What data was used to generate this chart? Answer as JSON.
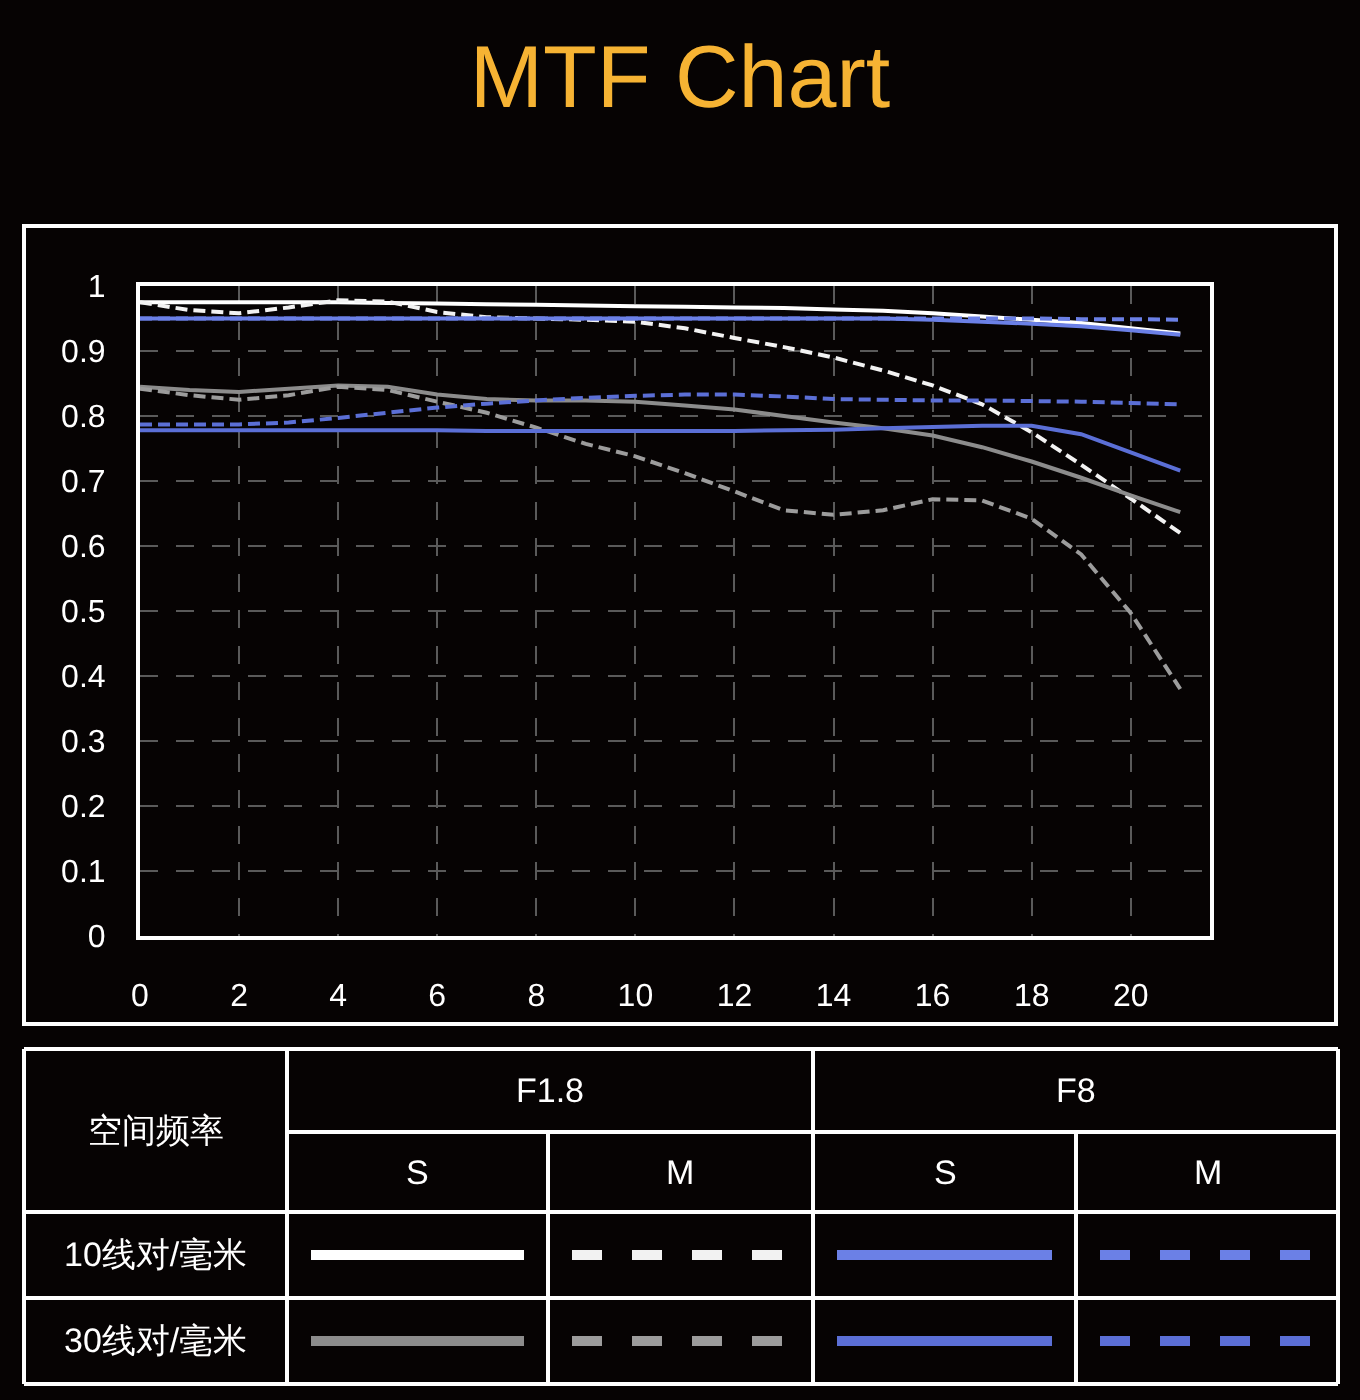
{
  "chart_data": {
    "type": "line",
    "title": "MTF Chart",
    "x": [
      0,
      1,
      2,
      3,
      4,
      5,
      6,
      7,
      8,
      9,
      10,
      11,
      12,
      13,
      14,
      15,
      16,
      17,
      18,
      19,
      20,
      21
    ],
    "series": [
      {
        "color": "#ffffff",
        "line_style": "solid",
        "values": [
          0.975,
          0.975,
          0.975,
          0.975,
          0.975,
          0.974,
          0.973,
          0.972,
          0.971,
          0.97,
          0.969,
          0.968,
          0.967,
          0.966,
          0.964,
          0.962,
          0.958,
          0.953,
          0.948,
          0.943,
          0.935,
          0.927
        ]
      },
      {
        "color": "#f2f2f2",
        "line_style": "dashed",
        "values": [
          0.975,
          0.963,
          0.958,
          0.967,
          0.978,
          0.976,
          0.96,
          0.952,
          0.95,
          0.948,
          0.945,
          0.935,
          0.92,
          0.906,
          0.89,
          0.87,
          0.847,
          0.818,
          0.775,
          0.725,
          0.673,
          0.62
        ]
      },
      {
        "color": "#6b80e6",
        "line_style": "solid",
        "values": [
          0.95,
          0.95,
          0.95,
          0.95,
          0.95,
          0.95,
          0.95,
          0.95,
          0.95,
          0.95,
          0.95,
          0.95,
          0.95,
          0.95,
          0.95,
          0.95,
          0.948,
          0.945,
          0.942,
          0.938,
          0.932,
          0.925
        ]
      },
      {
        "color": "#6b80e6",
        "line_style": "dashed",
        "values": [
          0.95,
          0.95,
          0.95,
          0.95,
          0.95,
          0.95,
          0.95,
          0.95,
          0.95,
          0.95,
          0.95,
          0.95,
          0.95,
          0.95,
          0.95,
          0.95,
          0.95,
          0.95,
          0.95,
          0.949,
          0.949,
          0.948
        ]
      },
      {
        "color": "#8c8c8c",
        "line_style": "solid",
        "values": [
          0.845,
          0.84,
          0.837,
          0.842,
          0.847,
          0.845,
          0.833,
          0.826,
          0.824,
          0.824,
          0.822,
          0.816,
          0.81,
          0.8,
          0.79,
          0.781,
          0.77,
          0.752,
          0.73,
          0.705,
          0.678,
          0.652
        ]
      },
      {
        "color": "#9c9c9c",
        "line_style": "dashed",
        "values": [
          0.842,
          0.832,
          0.825,
          0.832,
          0.845,
          0.84,
          0.822,
          0.805,
          0.782,
          0.757,
          0.738,
          0.712,
          0.684,
          0.655,
          0.648,
          0.655,
          0.672,
          0.67,
          0.642,
          0.587,
          0.497,
          0.38
        ]
      },
      {
        "color": "#5b6fd6",
        "line_style": "solid",
        "values": [
          0.778,
          0.778,
          0.778,
          0.778,
          0.778,
          0.778,
          0.778,
          0.777,
          0.777,
          0.777,
          0.777,
          0.777,
          0.777,
          0.778,
          0.779,
          0.781,
          0.783,
          0.785,
          0.785,
          0.772,
          0.744,
          0.716
        ]
      },
      {
        "color": "#5b6fd6",
        "line_style": "dashed",
        "values": [
          0.787,
          0.787,
          0.787,
          0.79,
          0.797,
          0.805,
          0.813,
          0.819,
          0.824,
          0.828,
          0.831,
          0.833,
          0.833,
          0.83,
          0.826,
          0.825,
          0.824,
          0.824,
          0.823,
          0.822,
          0.82,
          0.818
        ]
      }
    ],
    "xlim": [
      0,
      21.6
    ],
    "xticks": [
      0,
      2,
      4,
      6,
      8,
      10,
      12,
      14,
      16,
      18,
      20
    ],
    "ylim": [
      0,
      1
    ],
    "yticks": [
      0,
      0.1,
      0.2,
      0.3,
      0.4,
      0.5,
      0.6,
      0.7,
      0.8,
      0.9,
      1
    ],
    "grid": true,
    "annotations": [
      "空间频率",
      "F1.8",
      "F8",
      "S",
      "M",
      "S",
      "M",
      "10线对/毫米",
      "30线对/毫米"
    ]
  }
}
